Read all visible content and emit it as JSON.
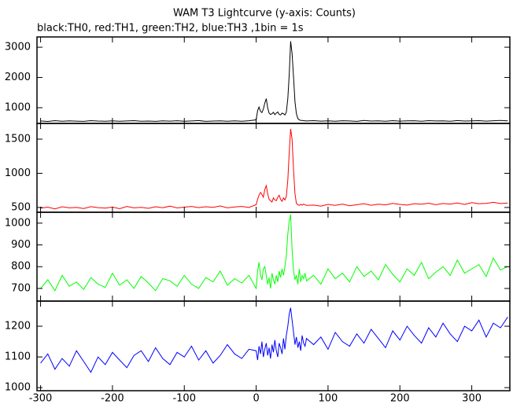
{
  "chart_data": [
    {
      "type": "line",
      "title": "WAM T3 Lightcurve (y-axis: Counts)",
      "subtitle": "black:TH0, red:TH1, green:TH2, blue:TH3 ,1bin = 1s",
      "xlim": [
        -305,
        353
      ],
      "ylim": [
        480,
        3340
      ],
      "yticks": [
        1000,
        2000,
        3000
      ],
      "x": [
        -300,
        -290,
        -280,
        -270,
        -260,
        -250,
        -240,
        -230,
        -220,
        -210,
        -200,
        -190,
        -180,
        -170,
        -160,
        -150,
        -140,
        -130,
        -120,
        -110,
        -100,
        -90,
        -80,
        -70,
        -60,
        -50,
        -40,
        -30,
        -20,
        -10,
        0,
        2,
        4,
        6,
        8,
        10,
        12,
        14,
        16,
        18,
        20,
        22,
        24,
        26,
        28,
        30,
        32,
        34,
        36,
        38,
        40,
        42,
        44,
        46,
        48,
        50,
        52,
        54,
        56,
        58,
        60,
        62,
        64,
        66,
        68,
        70,
        80,
        90,
        100,
        110,
        120,
        130,
        140,
        150,
        160,
        170,
        180,
        190,
        200,
        210,
        220,
        230,
        240,
        250,
        260,
        270,
        280,
        290,
        300,
        310,
        320,
        330,
        340,
        350
      ],
      "series": [
        {
          "name": "TH0",
          "color": "#000000",
          "values": [
            560,
            545,
            570,
            550,
            565,
            555,
            548,
            572,
            558,
            552,
            566,
            549,
            561,
            570,
            553,
            558,
            547,
            563,
            556,
            569,
            551,
            560,
            574,
            548,
            557,
            565,
            552,
            562,
            550,
            568,
            600,
            900,
            1020,
            880,
            840,
            950,
            1150,
            1300,
            1000,
            820,
            780,
            800,
            850,
            770,
            820,
            860,
            780,
            760,
            820,
            800,
            760,
            850,
            1300,
            2100,
            3200,
            2800,
            2000,
            1200,
            800,
            640,
            600,
            580,
            575,
            570,
            565,
            560,
            570,
            555,
            565,
            552,
            568,
            560,
            548,
            575,
            558,
            563,
            550,
            570,
            556,
            562,
            568,
            553,
            572,
            560,
            566,
            551,
            574,
            558,
            565,
            570,
            556,
            568,
            575,
            562
          ]
        }
      ]
    },
    {
      "type": "line",
      "xlim": [
        -305,
        353
      ],
      "ylim": [
        430,
        1730
      ],
      "yticks": [
        500,
        1000,
        1500
      ],
      "x": [
        -300,
        -290,
        -280,
        -270,
        -260,
        -250,
        -240,
        -230,
        -220,
        -210,
        -200,
        -190,
        -180,
        -170,
        -160,
        -150,
        -140,
        -130,
        -120,
        -110,
        -100,
        -90,
        -80,
        -70,
        -60,
        -50,
        -40,
        -30,
        -20,
        -10,
        0,
        2,
        4,
        6,
        8,
        10,
        12,
        14,
        16,
        18,
        20,
        22,
        24,
        26,
        28,
        30,
        32,
        34,
        36,
        38,
        40,
        42,
        44,
        46,
        48,
        50,
        52,
        54,
        56,
        58,
        60,
        62,
        64,
        66,
        68,
        70,
        80,
        90,
        100,
        110,
        120,
        130,
        140,
        150,
        160,
        170,
        180,
        190,
        200,
        210,
        220,
        230,
        240,
        250,
        260,
        270,
        280,
        290,
        300,
        310,
        320,
        330,
        340,
        350
      ],
      "series": [
        {
          "name": "TH1",
          "color": "#ff0000",
          "values": [
            490,
            505,
            480,
            510,
            495,
            500,
            485,
            512,
            498,
            490,
            506,
            482,
            515,
            495,
            502,
            488,
            510,
            497,
            520,
            493,
            505,
            515,
            498,
            510,
            503,
            522,
            495,
            508,
            515,
            500,
            540,
            620,
            680,
            720,
            690,
            650,
            760,
            820,
            700,
            620,
            600,
            580,
            640,
            610,
            600,
            650,
            680,
            620,
            590,
            640,
            610,
            660,
            900,
            1300,
            1650,
            1500,
            1050,
            700,
            560,
            540,
            530,
            545,
            535,
            550,
            540,
            530,
            535,
            520,
            545,
            530,
            550,
            525,
            540,
            555,
            532,
            548,
            538,
            560,
            545,
            535,
            555,
            548,
            562,
            540,
            558,
            550,
            565,
            545,
            570,
            555,
            560,
            575,
            558,
            565
          ]
        }
      ]
    },
    {
      "type": "line",
      "xlim": [
        -305,
        353
      ],
      "ylim": [
        642,
        1050
      ],
      "yticks": [
        700,
        800,
        900,
        1000
      ],
      "x": [
        -300,
        -290,
        -280,
        -270,
        -260,
        -250,
        -240,
        -230,
        -220,
        -210,
        -200,
        -190,
        -180,
        -170,
        -160,
        -150,
        -140,
        -130,
        -120,
        -110,
        -100,
        -90,
        -80,
        -70,
        -60,
        -50,
        -40,
        -30,
        -20,
        -10,
        0,
        2,
        4,
        6,
        8,
        10,
        12,
        14,
        16,
        18,
        20,
        22,
        24,
        26,
        28,
        30,
        32,
        34,
        36,
        38,
        40,
        42,
        44,
        46,
        48,
        50,
        52,
        54,
        56,
        58,
        60,
        62,
        64,
        66,
        68,
        70,
        80,
        90,
        100,
        110,
        120,
        130,
        140,
        150,
        160,
        170,
        180,
        190,
        200,
        210,
        220,
        230,
        240,
        250,
        260,
        270,
        280,
        290,
        300,
        310,
        320,
        330,
        340,
        350
      ],
      "series": [
        {
          "name": "TH2",
          "color": "#00ff00",
          "values": [
            700,
            740,
            690,
            760,
            710,
            730,
            695,
            750,
            720,
            705,
            770,
            715,
            740,
            700,
            755,
            725,
            690,
            745,
            735,
            710,
            760,
            720,
            700,
            750,
            730,
            780,
            715,
            745,
            725,
            760,
            700,
            780,
            820,
            760,
            740,
            790,
            800,
            760,
            720,
            750,
            700,
            770,
            740,
            720,
            760,
            730,
            780,
            750,
            790,
            760,
            800,
            850,
            950,
            1010,
            1040,
            880,
            780,
            740,
            760,
            720,
            790,
            730,
            760,
            745,
            770,
            735,
            760,
            720,
            790,
            745,
            770,
            730,
            800,
            755,
            780,
            740,
            810,
            765,
            730,
            790,
            760,
            820,
            745,
            775,
            800,
            760,
            830,
            770,
            790,
            810,
            755,
            840,
            785,
            800
          ]
        }
      ]
    },
    {
      "type": "line",
      "xlim": [
        -305,
        353
      ],
      "ylim": [
        990,
        1282
      ],
      "yticks": [
        1000,
        1100,
        1200
      ],
      "xticks": [
        -300,
        -200,
        -100,
        0,
        100,
        200,
        300
      ],
      "x": [
        -300,
        -290,
        -280,
        -270,
        -260,
        -250,
        -240,
        -230,
        -220,
        -210,
        -200,
        -190,
        -180,
        -170,
        -160,
        -150,
        -140,
        -130,
        -120,
        -110,
        -100,
        -90,
        -80,
        -70,
        -60,
        -50,
        -40,
        -30,
        -20,
        -10,
        0,
        2,
        4,
        6,
        8,
        10,
        12,
        14,
        16,
        18,
        20,
        22,
        24,
        26,
        28,
        30,
        32,
        34,
        36,
        38,
        40,
        42,
        44,
        46,
        48,
        50,
        52,
        54,
        56,
        58,
        60,
        62,
        64,
        66,
        68,
        70,
        80,
        90,
        100,
        110,
        120,
        130,
        140,
        150,
        160,
        170,
        180,
        190,
        200,
        210,
        220,
        230,
        240,
        250,
        260,
        270,
        280,
        290,
        300,
        310,
        320,
        330,
        340,
        350
      ],
      "series": [
        {
          "name": "TH3",
          "color": "#0000ff",
          "values": [
            1080,
            1110,
            1060,
            1095,
            1070,
            1120,
            1085,
            1050,
            1100,
            1075,
            1115,
            1090,
            1065,
            1105,
            1120,
            1085,
            1130,
            1095,
            1075,
            1115,
            1100,
            1135,
            1090,
            1120,
            1080,
            1105,
            1140,
            1110,
            1095,
            1125,
            1120,
            1090,
            1135,
            1110,
            1150,
            1100,
            1125,
            1145,
            1105,
            1130,
            1095,
            1140,
            1115,
            1155,
            1120,
            1100,
            1145,
            1130,
            1110,
            1160,
            1125,
            1170,
            1200,
            1240,
            1260,
            1220,
            1180,
            1140,
            1165,
            1130,
            1150,
            1120,
            1170,
            1145,
            1135,
            1160,
            1140,
            1165,
            1125,
            1180,
            1150,
            1135,
            1175,
            1145,
            1190,
            1160,
            1130,
            1185,
            1155,
            1200,
            1170,
            1145,
            1195,
            1165,
            1210,
            1175,
            1150,
            1200,
            1185,
            1220,
            1165,
            1210,
            1195,
            1230
          ]
        }
      ]
    }
  ]
}
